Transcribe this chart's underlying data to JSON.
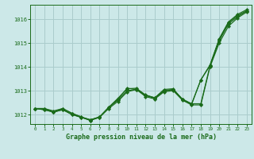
{
  "title": "Graphe pression niveau de la mer (hPa)",
  "bg_color": "#cce8e8",
  "grid_color": "#aacccc",
  "line_color": "#1a6b1a",
  "xlim": [
    -0.5,
    23.5
  ],
  "ylim": [
    1011.6,
    1016.6
  ],
  "yticks": [
    1012,
    1013,
    1014,
    1015,
    1016
  ],
  "xticks": [
    0,
    1,
    2,
    3,
    4,
    5,
    6,
    7,
    8,
    9,
    10,
    11,
    12,
    13,
    14,
    15,
    16,
    17,
    18,
    19,
    20,
    21,
    22,
    23
  ],
  "series": [
    [
      1012.25,
      1012.25,
      1012.15,
      1012.25,
      1012.05,
      1011.9,
      1011.75,
      1011.9,
      1012.3,
      1012.65,
      1013.1,
      1013.05,
      1012.8,
      1012.7,
      1013.0,
      1013.05,
      1012.65,
      1012.45,
      1012.45,
      1014.05,
      1015.1,
      1015.8,
      1016.1,
      1016.35
    ],
    [
      1012.25,
      1012.25,
      1012.1,
      1012.2,
      1012.0,
      1011.88,
      1011.75,
      1011.88,
      1012.25,
      1012.55,
      1012.95,
      1013.05,
      1012.75,
      1012.65,
      1012.95,
      1013.0,
      1012.6,
      1012.4,
      1012.4,
      1014.0,
      1015.0,
      1015.7,
      1016.05,
      1016.3
    ],
    [
      1012.25,
      1012.2,
      1012.1,
      1012.2,
      1012.0,
      1011.88,
      1011.78,
      1011.88,
      1012.3,
      1012.6,
      1013.0,
      1013.05,
      1012.8,
      1012.68,
      1012.98,
      1013.05,
      1012.62,
      1012.42,
      1013.45,
      1014.05,
      1015.15,
      1015.85,
      1016.15,
      1016.35
    ],
    [
      1012.25,
      1012.2,
      1012.1,
      1012.25,
      1012.05,
      1011.9,
      1011.78,
      1011.9,
      1012.3,
      1012.68,
      1013.08,
      1013.1,
      1012.82,
      1012.7,
      1013.05,
      1013.08,
      1012.62,
      1012.45,
      1013.45,
      1014.08,
      1015.18,
      1015.88,
      1016.2,
      1016.4
    ]
  ]
}
